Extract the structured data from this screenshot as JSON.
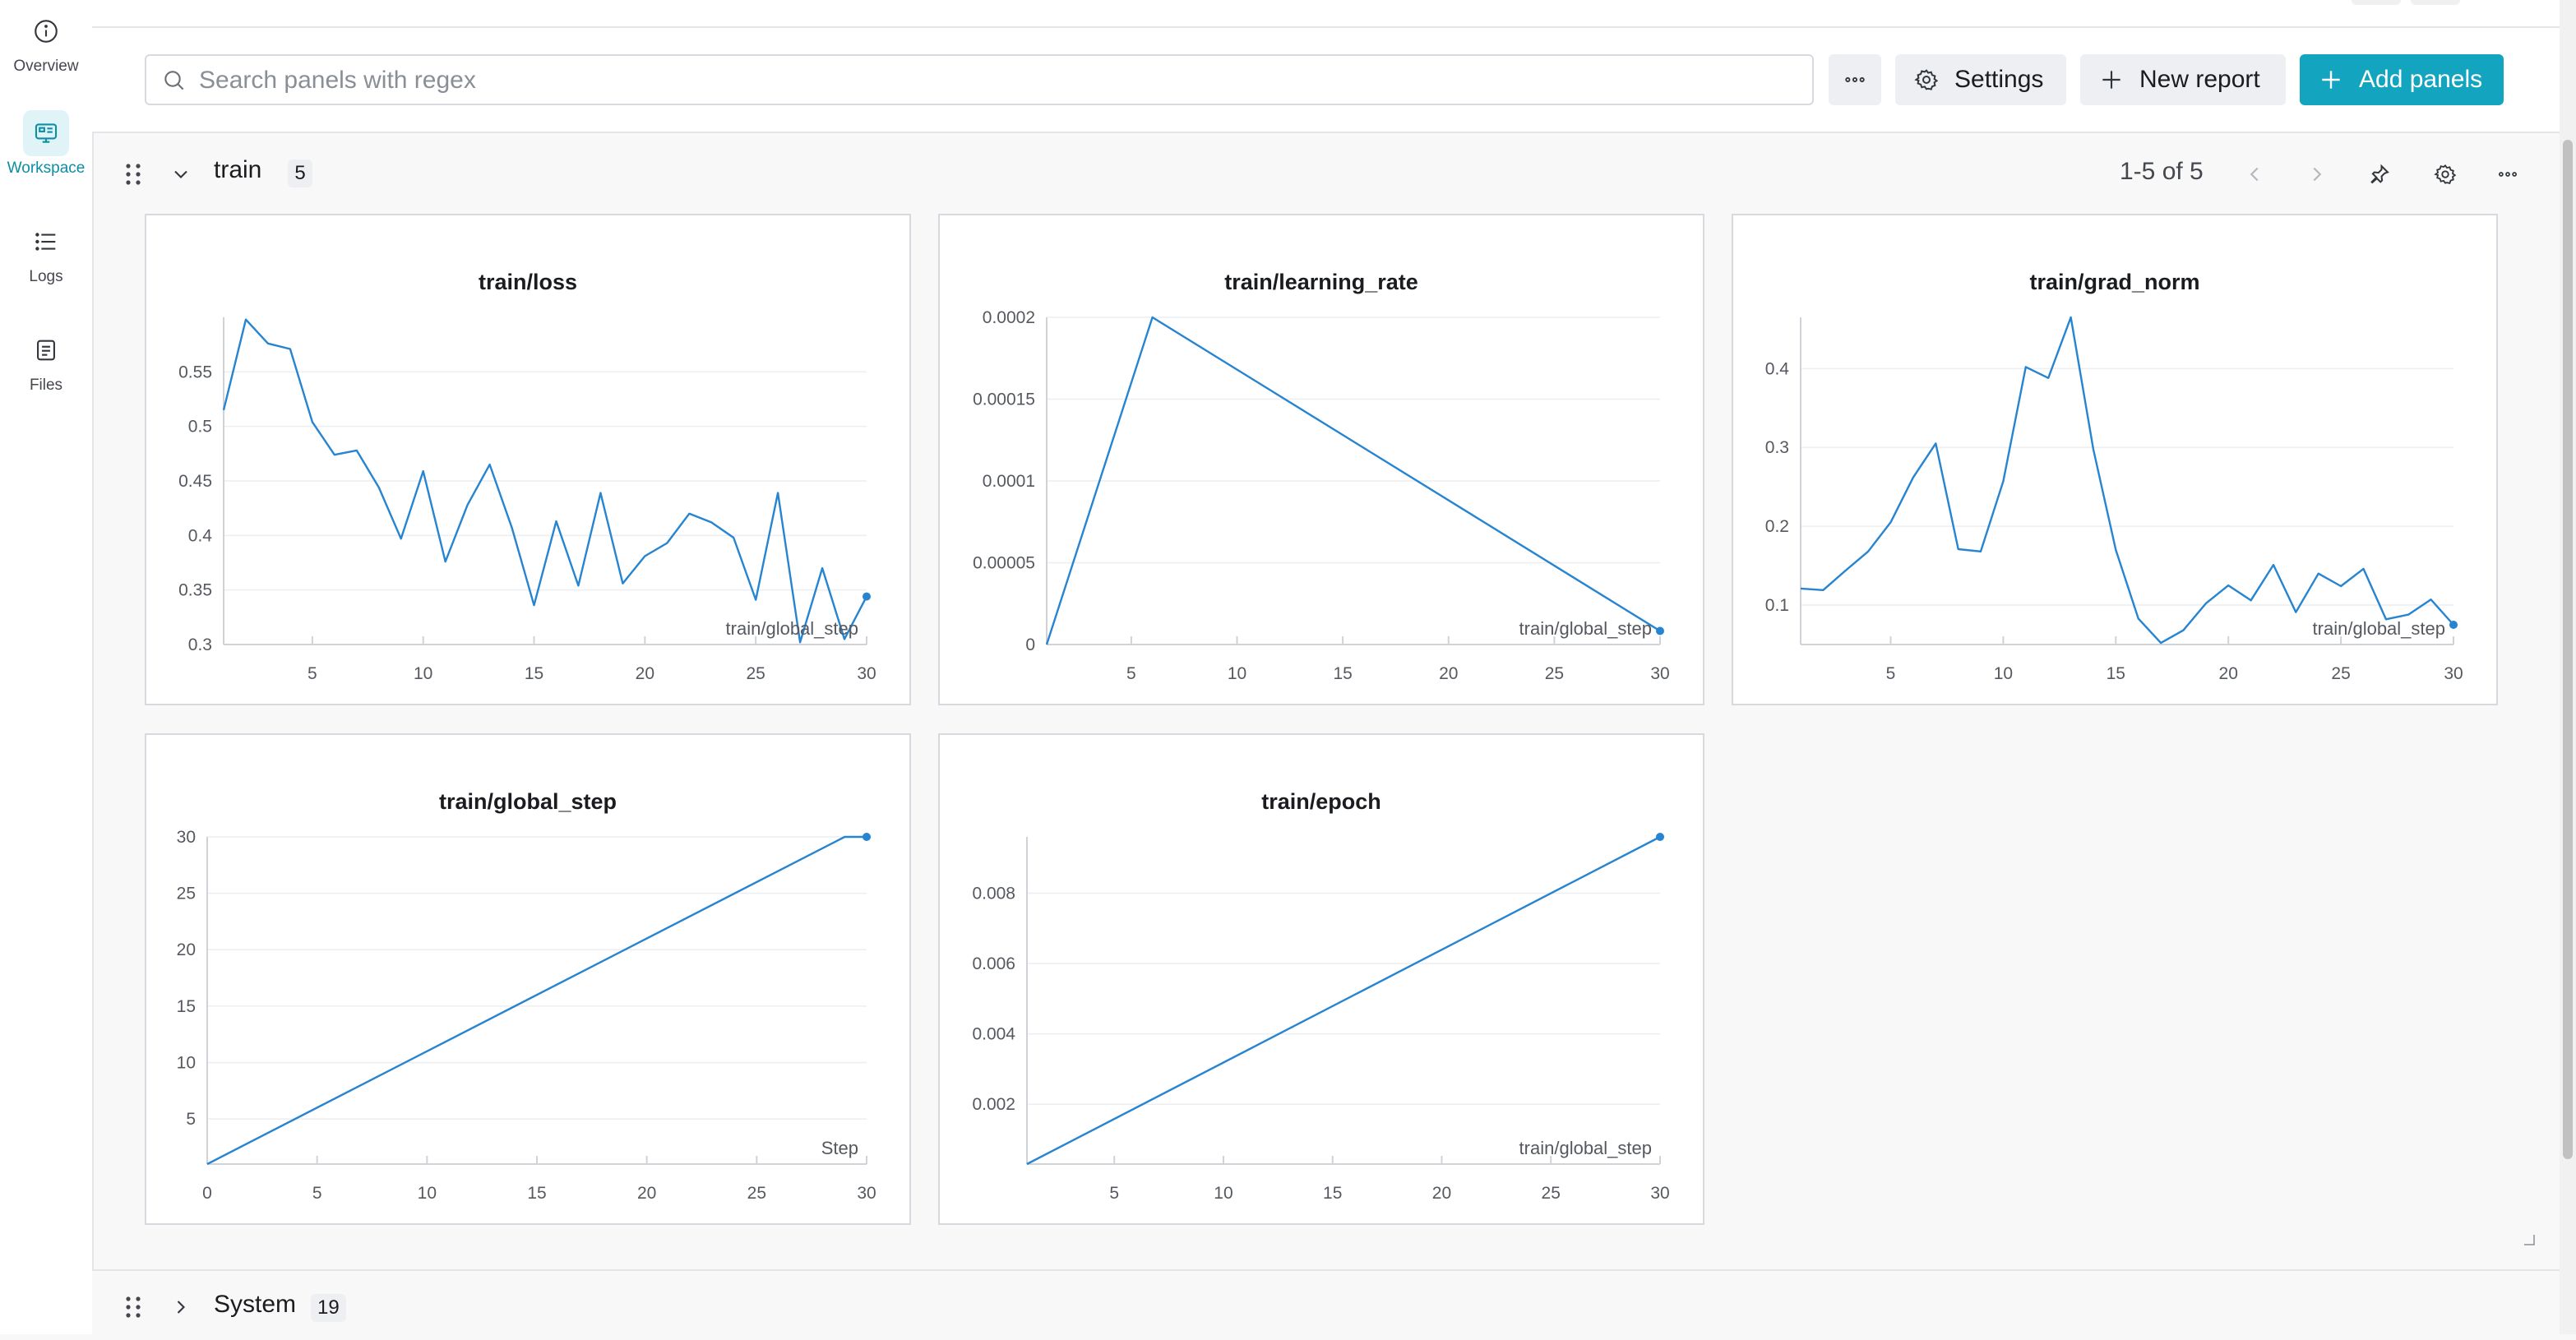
{
  "nav": {
    "items": [
      {
        "label": "Overview",
        "icon": "info-icon"
      },
      {
        "label": "Workspace",
        "icon": "workspace-icon",
        "active": true
      },
      {
        "label": "Logs",
        "icon": "list-icon"
      },
      {
        "label": "Files",
        "icon": "file-icon"
      }
    ]
  },
  "toolbar": {
    "search_placeholder": "Search panels with regex",
    "search_value": "",
    "settings_label": "Settings",
    "new_report_label": "New report",
    "add_panels_label": "Add panels",
    "accent_color": "#13a5bf"
  },
  "sections": {
    "train": {
      "title": "train",
      "count": "5",
      "pager": "1-5 of 5",
      "expanded": true
    },
    "system": {
      "title": "System",
      "count": "19",
      "expanded": false
    }
  },
  "chart_data": [
    {
      "type": "line",
      "title": "train/loss",
      "xlabel": "train/global_step",
      "x_ticks": [
        5,
        10,
        15,
        20,
        25,
        30
      ],
      "y_ticks": [
        0.3,
        0.35,
        0.4,
        0.45,
        0.5,
        0.55
      ],
      "y_tick_labels": [
        "0.3",
        "0.35",
        "0.4",
        "0.45",
        "0.5",
        "0.55"
      ],
      "xlim": [
        1,
        30
      ],
      "ylim": [
        0.3,
        0.6
      ],
      "grid": true,
      "color": "#2684d0",
      "x": [
        1,
        2,
        3,
        4,
        5,
        6,
        7,
        8,
        9,
        10,
        11,
        12,
        13,
        14,
        15,
        16,
        17,
        18,
        19,
        20,
        21,
        22,
        23,
        24,
        25,
        26,
        27,
        28,
        29,
        30
      ],
      "y": [
        0.515,
        0.598,
        0.576,
        0.571,
        0.504,
        0.474,
        0.478,
        0.444,
        0.397,
        0.459,
        0.376,
        0.428,
        0.465,
        0.407,
        0.336,
        0.413,
        0.354,
        0.439,
        0.356,
        0.381,
        0.393,
        0.42,
        0.412,
        0.398,
        0.341,
        0.439,
        0.302,
        0.37,
        0.305,
        0.344
      ]
    },
    {
      "type": "line",
      "title": "train/learning_rate",
      "xlabel": "train/global_step",
      "x_ticks": [
        5,
        10,
        15,
        20,
        25,
        30
      ],
      "y_ticks": [
        0,
        5e-05,
        0.0001,
        0.00015,
        0.0002
      ],
      "y_tick_labels": [
        "0",
        "0.00005",
        "0.0001",
        "0.00015",
        "0.0002"
      ],
      "xlim": [
        1,
        30
      ],
      "ylim": [
        0,
        0.0002
      ],
      "grid": true,
      "color": "#2684d0",
      "x": [
        1,
        6,
        30
      ],
      "y": [
        0,
        0.0002,
        8.3e-06
      ]
    },
    {
      "type": "line",
      "title": "train/grad_norm",
      "xlabel": "train/global_step",
      "x_ticks": [
        5,
        10,
        15,
        20,
        25,
        30
      ],
      "y_ticks": [
        0.1,
        0.2,
        0.3,
        0.4
      ],
      "y_tick_labels": [
        "0.1",
        "0.2",
        "0.3",
        "0.4"
      ],
      "xlim": [
        1,
        30
      ],
      "ylim": [
        0.05,
        0.465
      ],
      "grid": true,
      "color": "#2684d0",
      "x": [
        1,
        2,
        3,
        4,
        5,
        6,
        7,
        8,
        9,
        10,
        11,
        12,
        13,
        14,
        15,
        16,
        17,
        18,
        19,
        20,
        21,
        22,
        23,
        24,
        25,
        26,
        27,
        28,
        29,
        30
      ],
      "y": [
        0.121,
        0.119,
        0.144,
        0.168,
        0.205,
        0.262,
        0.305,
        0.171,
        0.168,
        0.257,
        0.402,
        0.388,
        0.465,
        0.298,
        0.17,
        0.083,
        0.052,
        0.068,
        0.102,
        0.125,
        0.106,
        0.151,
        0.091,
        0.14,
        0.124,
        0.146,
        0.082,
        0.088,
        0.107,
        0.075
      ]
    },
    {
      "type": "line",
      "title": "train/global_step",
      "xlabel": "Step",
      "x_ticks": [
        0,
        5,
        10,
        15,
        20,
        25,
        30
      ],
      "y_ticks": [
        5,
        10,
        15,
        20,
        25,
        30
      ],
      "y_tick_labels": [
        "5",
        "10",
        "15",
        "20",
        "25",
        "30"
      ],
      "xlim": [
        0,
        30
      ],
      "ylim": [
        1,
        30
      ],
      "grid": true,
      "color": "#2684d0",
      "x": [
        0,
        29,
        30
      ],
      "y": [
        1,
        30,
        30
      ]
    },
    {
      "type": "line",
      "title": "train/epoch",
      "xlabel": "train/global_step",
      "x_ticks": [
        5,
        10,
        15,
        20,
        25,
        30
      ],
      "y_ticks": [
        0.002,
        0.004,
        0.006,
        0.008
      ],
      "y_tick_labels": [
        "0.002",
        "0.004",
        "0.006",
        "0.008"
      ],
      "xlim": [
        1,
        30
      ],
      "ylim": [
        0.0003,
        0.0096
      ],
      "grid": true,
      "color": "#2684d0",
      "x": [
        1,
        30
      ],
      "y": [
        0.0003,
        0.0096
      ]
    }
  ]
}
